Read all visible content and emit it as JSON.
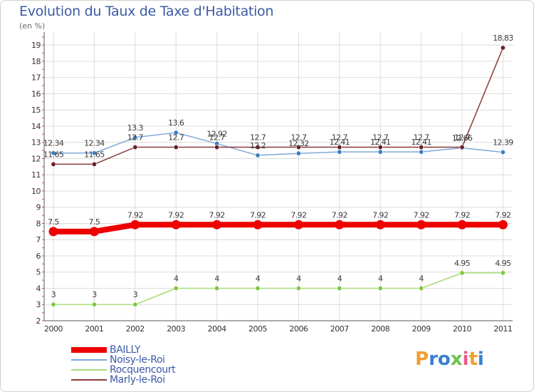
{
  "title": "Evolution du Taux de Taxe d'Habitation",
  "brand": {
    "letters": [
      "P",
      "r",
      "o",
      "x",
      "i",
      "t",
      "i"
    ],
    "colors": [
      "#f0a030",
      "#3b7fd0",
      "#3b7fd0",
      "#6cc24a",
      "#e85a8a",
      "#f0a030",
      "#3b7fd0"
    ]
  },
  "chart_data": {
    "type": "line",
    "title": "Evolution du Taux de Taxe d'Habitation",
    "ylabel": "(en %)",
    "xlabel": "",
    "x": [
      "2000",
      "2001",
      "2002",
      "2003",
      "2004",
      "2005",
      "2006",
      "2007",
      "2008",
      "2009",
      "2010",
      "2011"
    ],
    "ylim": [
      2,
      19.8
    ],
    "yticks": [
      "2",
      "3",
      "4",
      "5",
      "6",
      "7",
      "8",
      "9",
      "10",
      "11",
      "12",
      "13",
      "14",
      "15",
      "16",
      "17",
      "18",
      "19"
    ],
    "grid": true,
    "legend_position": "bottom-left",
    "series": [
      {
        "name": "BAILLY",
        "color": "#ee0000",
        "style": "thick",
        "values": [
          7.5,
          7.5,
          7.92,
          7.92,
          7.92,
          7.92,
          7.92,
          7.92,
          7.92,
          7.92,
          7.92,
          7.92
        ],
        "labels": [
          "7.5",
          "7.5",
          "7.92",
          "7.92",
          "7.92",
          "7.92",
          "7.92",
          "7.92",
          "7.92",
          "7.92",
          "7.92",
          "7.92"
        ]
      },
      {
        "name": "Noisy-le-Roi",
        "color": "#7fa8d8",
        "marker_color": "#3b7fc4",
        "style": "thin",
        "values": [
          12.34,
          12.34,
          13.3,
          13.6,
          12.92,
          12.2,
          12.32,
          12.41,
          12.41,
          12.41,
          12.66,
          12.39
        ],
        "labels": [
          "12.34",
          "12.34",
          "13.3",
          "13.6",
          "12.92",
          "12.2",
          "12.32",
          "12.41",
          "12.41",
          "12.41",
          "12.66",
          "12.39"
        ]
      },
      {
        "name": "Rocquencourt",
        "color": "#a8dc78",
        "marker_color": "#7cc83c",
        "style": "thin",
        "values": [
          3,
          3,
          3,
          4,
          4,
          4,
          4,
          4,
          4,
          4,
          4.95,
          4.95
        ],
        "labels": [
          "3",
          "3",
          "3",
          "4",
          "4",
          "4",
          "4",
          "4",
          "4",
          "4",
          "4.95",
          "4.95"
        ]
      },
      {
        "name": "Marly-le-Roi",
        "color": "#8a3a3a",
        "marker_color": "#6a1f2a",
        "style": "thin",
        "values": [
          11.65,
          11.65,
          12.7,
          12.7,
          12.7,
          12.7,
          12.7,
          12.7,
          12.7,
          12.7,
          12.7,
          18.83
        ],
        "labels": [
          "11.65",
          "11.65",
          "12.7",
          "12.7",
          "12.7",
          "12.7",
          "12.7",
          "12.7",
          "12.7",
          "12.7",
          "12.7",
          "18.83"
        ]
      }
    ]
  }
}
